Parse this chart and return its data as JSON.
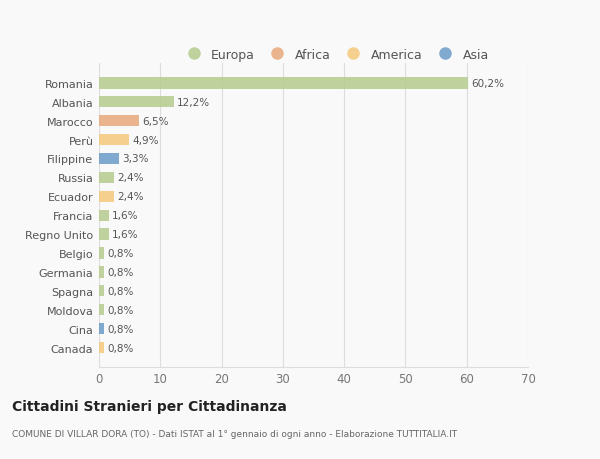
{
  "countries": [
    "Romania",
    "Albania",
    "Marocco",
    "Perù",
    "Filippine",
    "Russia",
    "Ecuador",
    "Francia",
    "Regno Unito",
    "Belgio",
    "Germania",
    "Spagna",
    "Moldova",
    "Cina",
    "Canada"
  ],
  "values": [
    60.2,
    12.2,
    6.5,
    4.9,
    3.3,
    2.4,
    2.4,
    1.6,
    1.6,
    0.8,
    0.8,
    0.8,
    0.8,
    0.8,
    0.8
  ],
  "labels": [
    "60,2%",
    "12,2%",
    "6,5%",
    "4,9%",
    "3,3%",
    "2,4%",
    "2,4%",
    "1,6%",
    "1,6%",
    "0,8%",
    "0,8%",
    "0,8%",
    "0,8%",
    "0,8%",
    "0,8%"
  ],
  "colors": [
    "#b5cc8e",
    "#b5cc8e",
    "#e8a87c",
    "#f5c87a",
    "#6b9bc8",
    "#b5cc8e",
    "#f5c87a",
    "#b5cc8e",
    "#b5cc8e",
    "#b5cc8e",
    "#b5cc8e",
    "#b5cc8e",
    "#b5cc8e",
    "#6b9bc8",
    "#f5c87a"
  ],
  "legend_labels": [
    "Europa",
    "Africa",
    "America",
    "Asia"
  ],
  "legend_colors": [
    "#b5cc8e",
    "#e8a87c",
    "#f5c87a",
    "#6b9bc8"
  ],
  "title": "Cittadini Stranieri per Cittadinanza",
  "subtitle": "COMUNE DI VILLAR DORA (TO) - Dati ISTAT al 1° gennaio di ogni anno - Elaborazione TUTTITALIA.IT",
  "xlim": [
    0,
    70
  ],
  "xticks": [
    0,
    10,
    20,
    30,
    40,
    50,
    60,
    70
  ],
  "background_color": "#f9f9f9",
  "grid_color": "#dddddd",
  "bar_height": 0.6
}
